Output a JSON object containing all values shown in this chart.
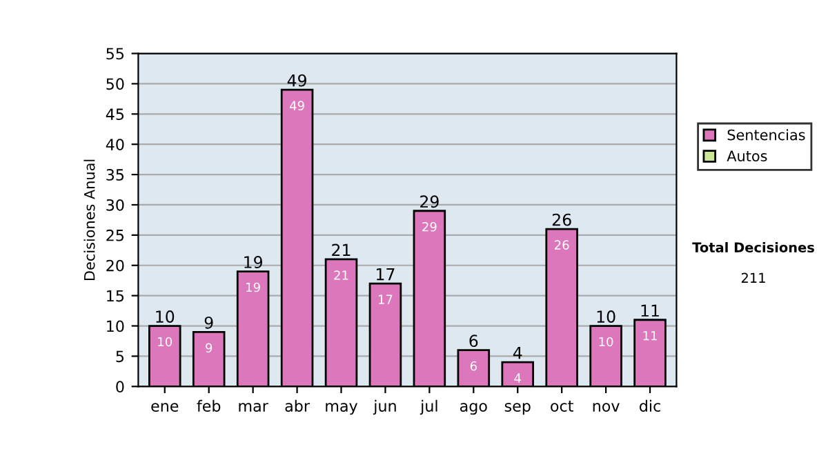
{
  "chart_data": {
    "type": "bar",
    "ylabel": "Decisiones Anual",
    "categories": [
      "ene",
      "feb",
      "mar",
      "abr",
      "may",
      "jun",
      "jul",
      "ago",
      "sep",
      "oct",
      "nov",
      "dic"
    ],
    "series": [
      {
        "name": "Sentencias",
        "color": "#dd77bb",
        "values": [
          10,
          9,
          19,
          49,
          21,
          17,
          29,
          6,
          4,
          26,
          10,
          11
        ],
        "value_labels": [
          "10",
          "9",
          "19",
          "49",
          "21",
          "17",
          "29",
          "6",
          "4",
          "26",
          "10",
          "11"
        ]
      },
      {
        "name": "Autos",
        "color": "#cce699",
        "values": [
          0,
          0,
          0,
          0,
          0,
          0,
          0,
          0,
          0,
          0,
          0,
          0
        ]
      }
    ],
    "stacked": true,
    "totals": [
      "10",
      "9",
      "19",
      "49",
      "21",
      "17",
      "29",
      "6",
      "4",
      "26",
      "10",
      "11"
    ],
    "ylim": [
      0,
      55
    ],
    "yticks": [
      0,
      5,
      10,
      15,
      20,
      25,
      30,
      35,
      40,
      45,
      50,
      55
    ],
    "grid": "y",
    "legend": "right",
    "annotations": [
      "Total Decisiones",
      "211"
    ]
  }
}
